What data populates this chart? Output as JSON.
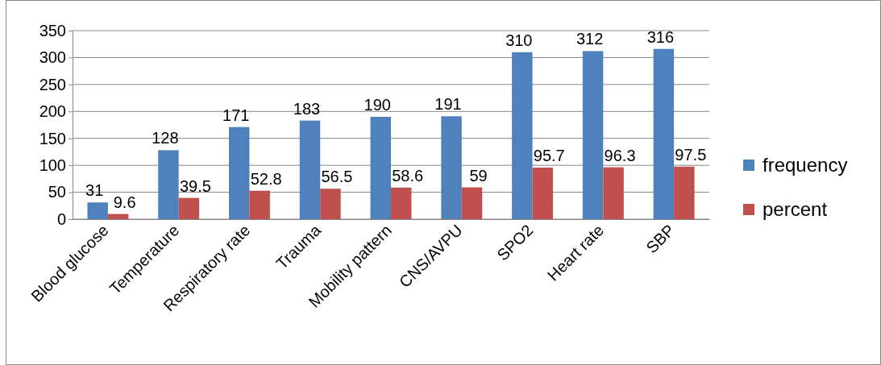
{
  "chart_data": {
    "type": "bar",
    "categories": [
      "Blood glucose",
      "Temperature",
      "Respiratory rate",
      "Trauma",
      "Mobility pattern",
      "CNS/AVPU",
      "SPO2",
      "Heart rate",
      "SBP"
    ],
    "series": [
      {
        "name": "frequency",
        "color": "#4f81bd",
        "values": [
          31,
          128,
          171,
          183,
          190,
          191,
          310,
          312,
          316
        ]
      },
      {
        "name": "percent",
        "color": "#c0504d",
        "values": [
          9.6,
          39.5,
          52.8,
          56.5,
          58.6,
          59,
          95.7,
          96.3,
          97.5
        ]
      }
    ],
    "ylim": [
      0,
      350
    ],
    "yticks": [
      0,
      50,
      100,
      150,
      200,
      250,
      300,
      350
    ],
    "grid": "y",
    "legend": "right",
    "data_labels": true
  }
}
